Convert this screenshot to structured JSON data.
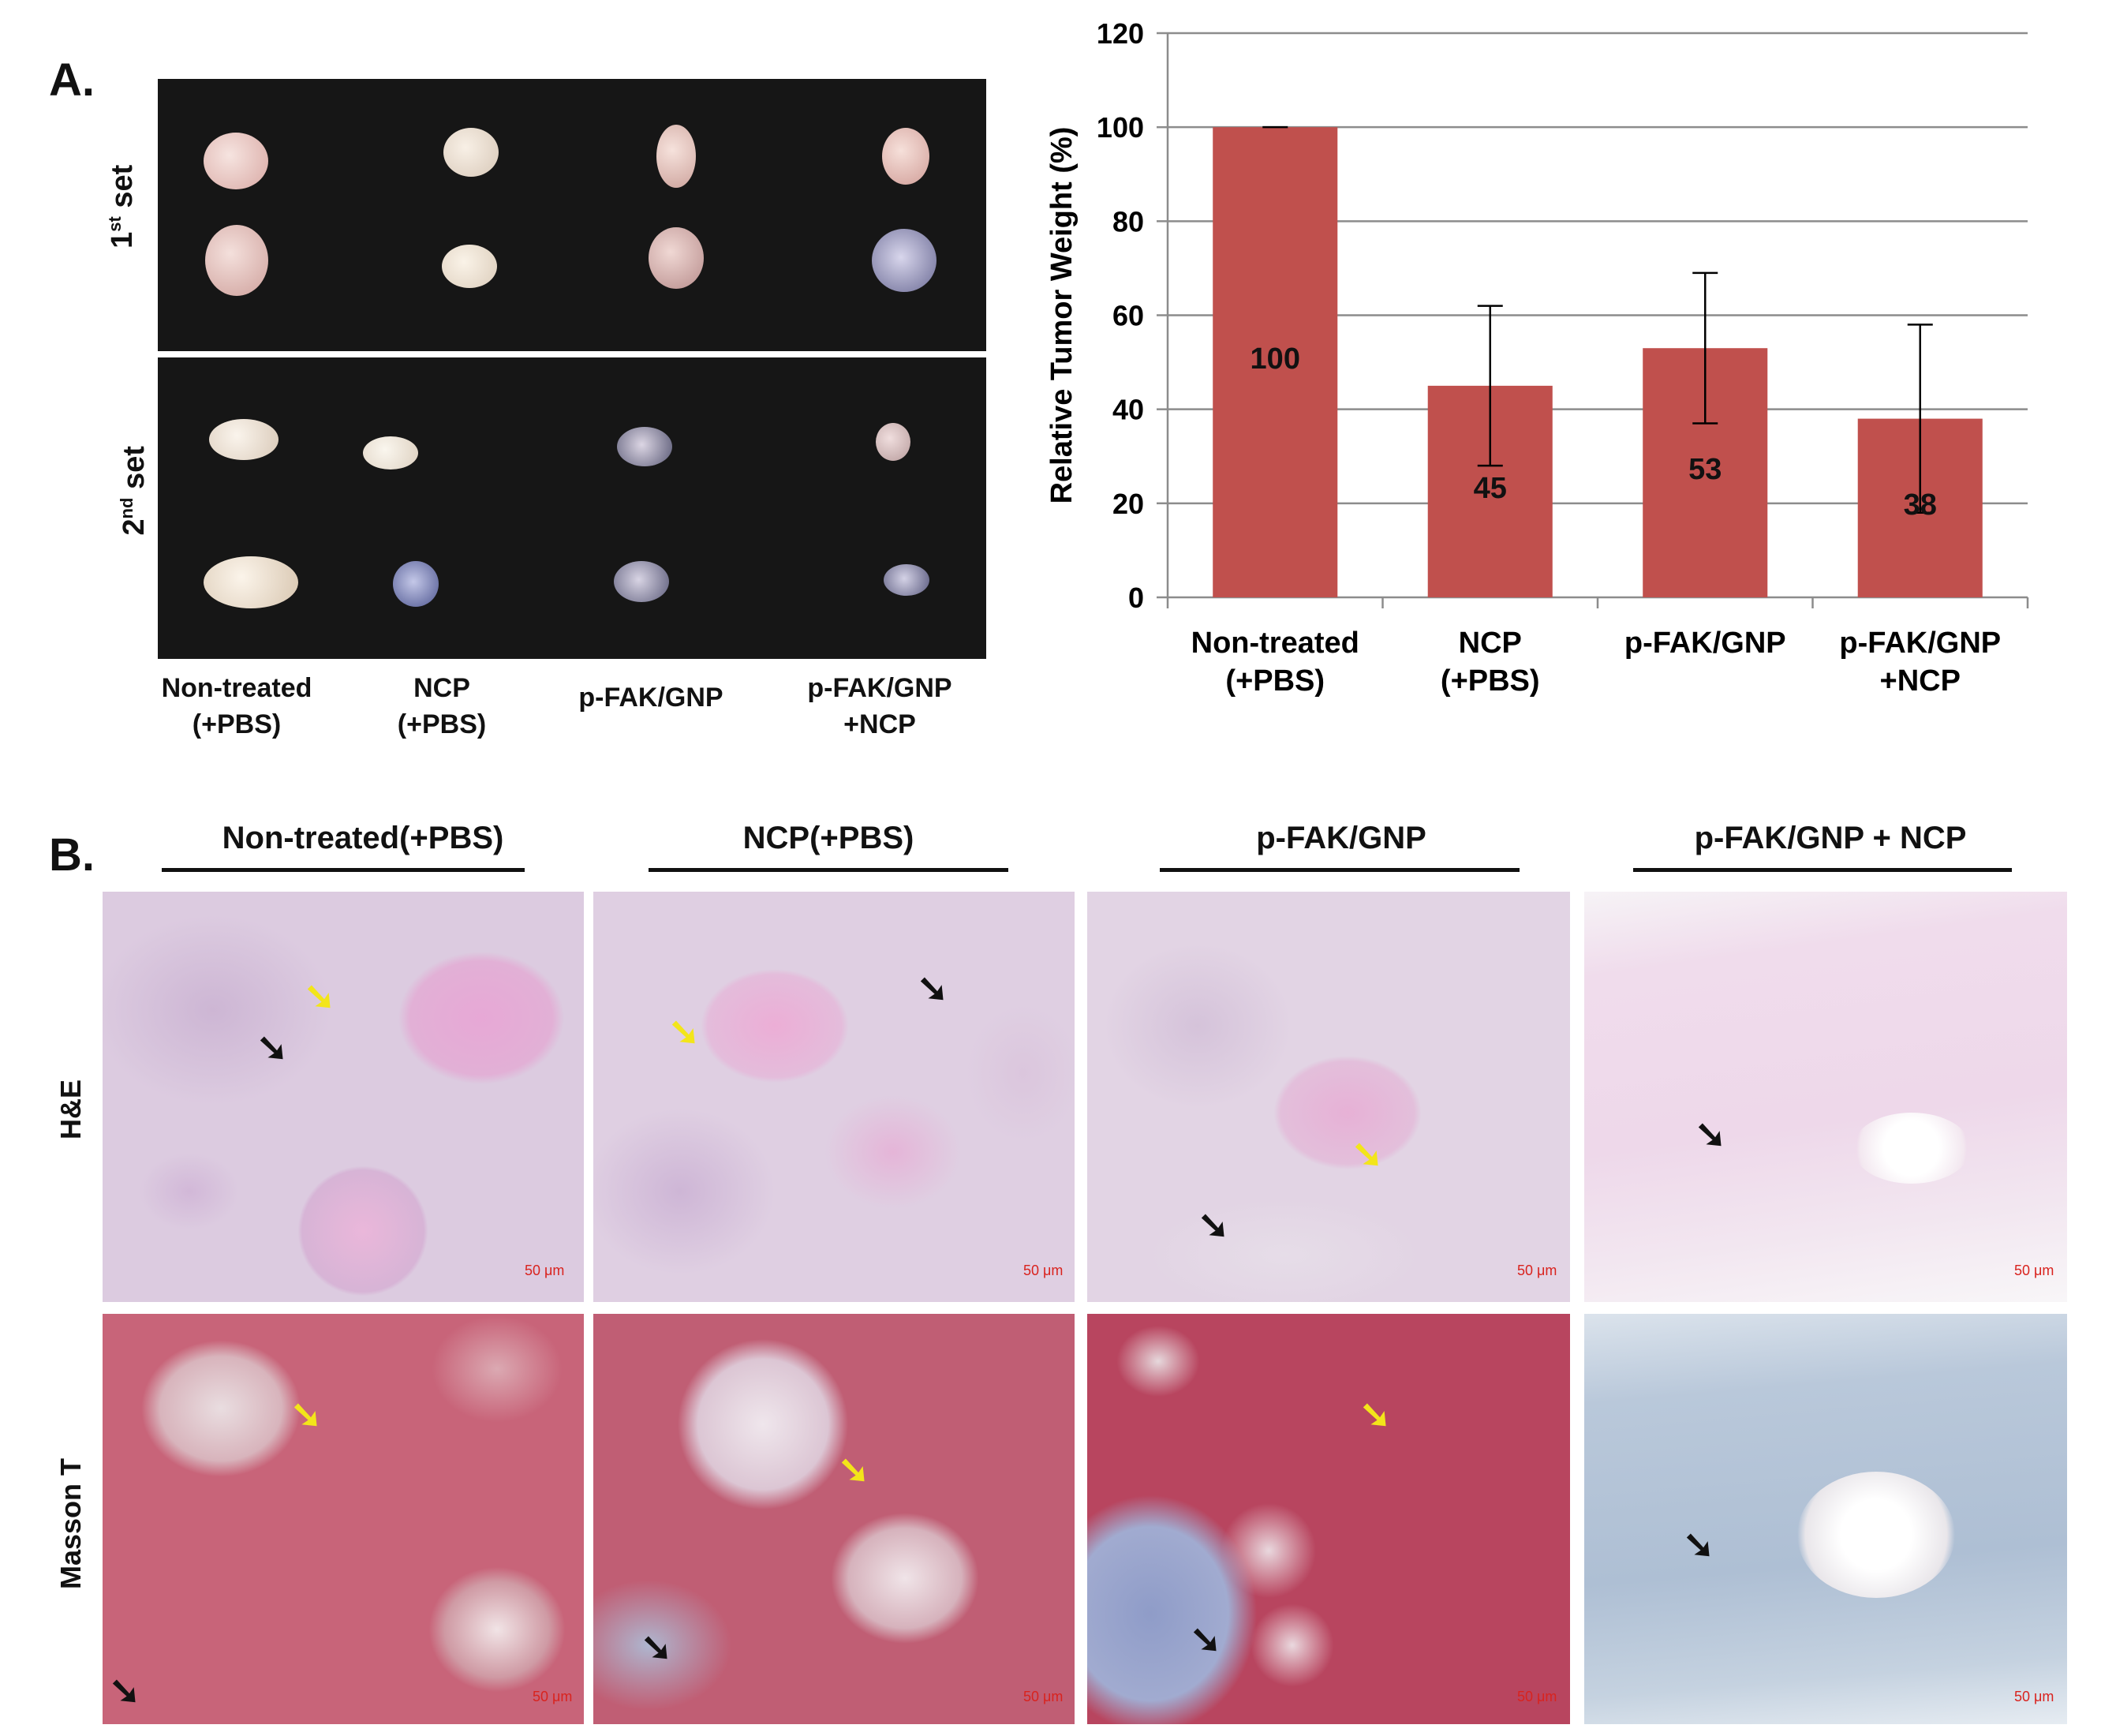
{
  "panel_a": {
    "letter": "A.",
    "set_labels": [
      {
        "main": "1",
        "sup": "st",
        "rest": " set"
      },
      {
        "main": "2",
        "sup": "nd",
        "rest": " set"
      }
    ],
    "group_labels": [
      "Non-treated\n(+PBS)",
      "NCP\n(+PBS)",
      "p-FAK/GNP",
      "p-FAK/GNP\n+NCP"
    ]
  },
  "chart_data": {
    "type": "bar",
    "categories": [
      "Non-treated\n(+PBS)",
      "NCP\n(+PBS)",
      "p-FAK/GNP",
      "p-FAK/GNP\n+NCP"
    ],
    "values": [
      100,
      45,
      53,
      38
    ],
    "error_low": [
      0,
      17,
      16,
      20
    ],
    "error_high": [
      0,
      17,
      16,
      20
    ],
    "data_labels": [
      "100",
      "45",
      "53",
      "38"
    ],
    "ylabel": "Relative Tumor Weight (%)",
    "ylim": [
      0,
      120
    ],
    "yticks": [
      "0",
      "20",
      "40",
      "60",
      "80",
      "100",
      "120"
    ],
    "grid": true,
    "bar_color": "#c0504d"
  },
  "panel_b": {
    "letter": "B.",
    "column_titles": [
      "Non-treated(+PBS)",
      "NCP(+PBS)",
      "p-FAK/GNP",
      "p-FAK/GNP + NCP"
    ],
    "row_labels": [
      "H&E",
      "Masson T"
    ],
    "scale_bar": "50 μm"
  }
}
